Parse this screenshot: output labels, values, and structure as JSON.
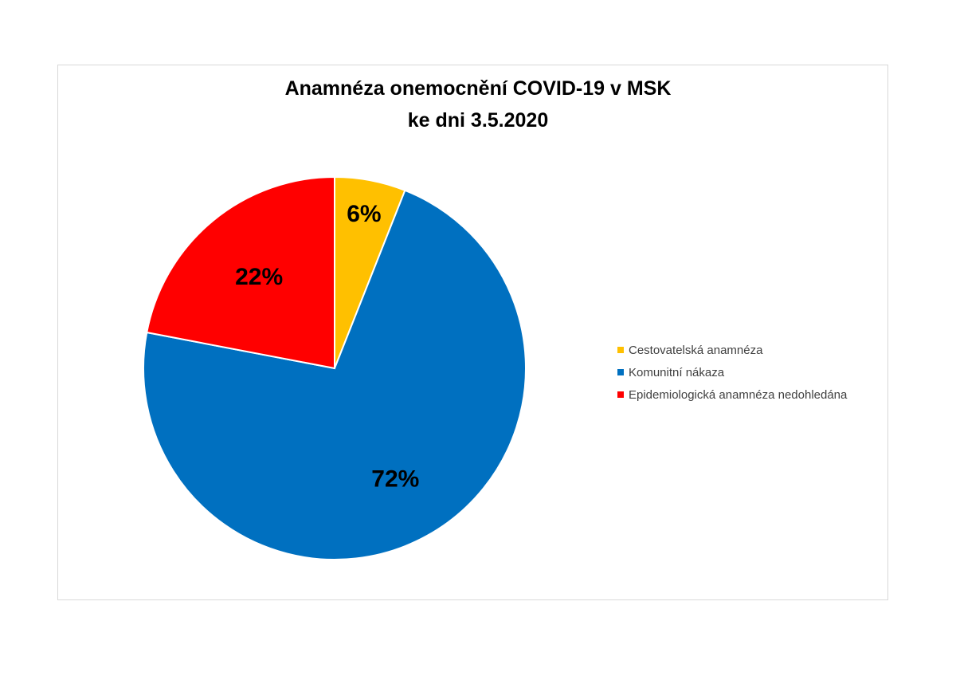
{
  "chart_data": {
    "type": "pie",
    "title_line1": "Anamnéza onemocnění COVID-19 v MSK",
    "title_line2": "ke dni 3.5.2020",
    "slices": [
      {
        "name": "Cestovatelská anamnéza",
        "value": 6,
        "label": "6%",
        "color": "#FFC000"
      },
      {
        "name": "Komunitní nákaza",
        "value": 72,
        "label": "72%",
        "color": "#0070C0"
      },
      {
        "name": "Epidemiologická anamnéza nedohledána",
        "value": 22,
        "label": "22%",
        "color": "#FF0000"
      }
    ],
    "legend_position": "right"
  }
}
